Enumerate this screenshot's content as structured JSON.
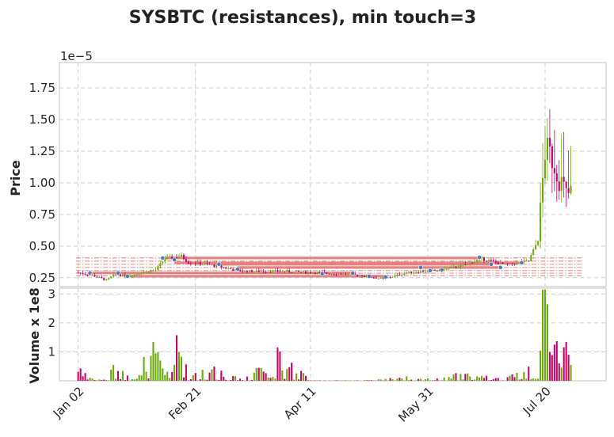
{
  "chart_data": {
    "type": "candlestick",
    "title": "SYSBTC (resistances), min touch=3",
    "price_panel": {
      "ylabel": "Price",
      "scale_offset_label": "1e−5",
      "ylim": [
        0.18,
        1.95
      ],
      "yticks": [
        0.25,
        0.5,
        0.75,
        1.0,
        1.25,
        1.5,
        1.75
      ],
      "ytick_labels": [
        "0.25",
        "0.50",
        "0.75",
        "1.00",
        "1.25",
        "1.50",
        "1.75"
      ],
      "resistance_levels": [
        0.406,
        0.381,
        0.356,
        0.331,
        0.306,
        0.286,
        0.266
      ]
    },
    "volume_panel": {
      "ylabel": "Volume x 1e8",
      "ylim": [
        0,
        3.2
      ],
      "yticks": [
        1,
        2,
        3
      ],
      "ytick_labels": [
        "1",
        "2",
        "3"
      ]
    },
    "xticks": [
      {
        "label": "Jan 02",
        "day": 0
      },
      {
        "label": "Feb 21",
        "day": 50
      },
      {
        "label": "Apr 11",
        "day": 99
      },
      {
        "label": "May 31",
        "day": 149
      },
      {
        "label": "Jul 20",
        "day": 199
      }
    ],
    "x_range_days": [
      -8,
      225
    ],
    "colors": {
      "up": "#6aaa0a",
      "down": "#cc0066",
      "resistance": "#e07a7a",
      "touch_marker": "#4a7ab8",
      "grid": "#cfcfcf"
    },
    "touches": [
      {
        "day": 5,
        "price": 0.288
      },
      {
        "day": 17,
        "price": 0.288
      },
      {
        "day": 21,
        "price": 0.262
      },
      {
        "day": 36,
        "price": 0.406
      },
      {
        "day": 41,
        "price": 0.392
      },
      {
        "day": 60,
        "price": 0.357
      },
      {
        "day": 68,
        "price": 0.318
      },
      {
        "day": 104,
        "price": 0.281
      },
      {
        "day": 117,
        "price": 0.286
      },
      {
        "day": 124,
        "price": 0.262
      },
      {
        "day": 131,
        "price": 0.256
      },
      {
        "day": 146,
        "price": 0.331
      },
      {
        "day": 150,
        "price": 0.306
      },
      {
        "day": 155,
        "price": 0.312
      },
      {
        "day": 171,
        "price": 0.411
      },
      {
        "day": 176,
        "price": 0.356
      },
      {
        "day": 180,
        "price": 0.331
      },
      {
        "day": 189,
        "price": 0.368
      }
    ],
    "ohlcv_keyframes": [
      {
        "day": 0,
        "close": 0.29,
        "volume": 0.45
      },
      {
        "day": 6,
        "close": 0.27,
        "volume": 0.05
      },
      {
        "day": 12,
        "close": 0.23,
        "volume": 0.03
      },
      {
        "day": 16,
        "close": 0.28,
        "volume": 0.55
      },
      {
        "day": 21,
        "close": 0.26,
        "volume": 0.15
      },
      {
        "day": 27,
        "close": 0.29,
        "volume": 0.45
      },
      {
        "day": 33,
        "close": 0.31,
        "volume": 1.0
      },
      {
        "day": 37,
        "close": 0.4,
        "volume": 0.2
      },
      {
        "day": 44,
        "close": 0.42,
        "volume": 1.4
      },
      {
        "day": 47,
        "close": 0.37,
        "volume": 0.1
      },
      {
        "day": 57,
        "close": 0.35,
        "volume": 0.35
      },
      {
        "day": 70,
        "close": 0.3,
        "volume": 0.04
      },
      {
        "day": 85,
        "close": 0.3,
        "volume": 0.8
      },
      {
        "day": 100,
        "close": 0.29,
        "volume": 0.01
      },
      {
        "day": 120,
        "close": 0.27,
        "volume": 0.01
      },
      {
        "day": 130,
        "close": 0.24,
        "volume": 0.05
      },
      {
        "day": 140,
        "close": 0.29,
        "volume": 0.1
      },
      {
        "day": 155,
        "close": 0.31,
        "volume": 0.08
      },
      {
        "day": 165,
        "close": 0.35,
        "volume": 0.25
      },
      {
        "day": 172,
        "close": 0.4,
        "volume": 0.15
      },
      {
        "day": 182,
        "close": 0.35,
        "volume": 0.06
      },
      {
        "day": 192,
        "close": 0.38,
        "volume": 0.35
      },
      {
        "day": 196,
        "close": 0.55,
        "volume": 1.0
      },
      {
        "day": 199,
        "close": 1.25,
        "volume": 2.9
      },
      {
        "day": 202,
        "close": 1.2,
        "volume": 1.6
      },
      {
        "day": 205,
        "close": 1.05,
        "volume": 0.55
      },
      {
        "day": 208,
        "close": 0.9,
        "volume": 1.5
      },
      {
        "day": 210,
        "close": 0.92,
        "volume": 0.4
      }
    ]
  }
}
